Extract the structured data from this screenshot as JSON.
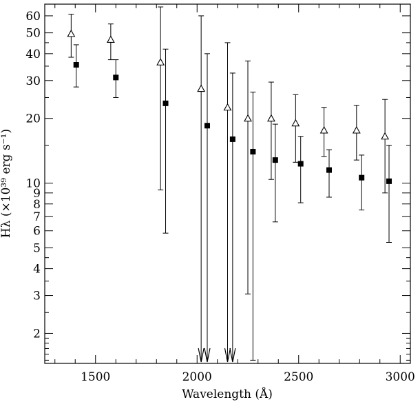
{
  "chart_data": {
    "type": "scatter",
    "xlabel": "Wavelength (Å)",
    "ylabel": "Hλ (×10³⁹ erg s⁻¹)",
    "xlim": [
      1250,
      3050
    ],
    "ylim": [
      1.45,
      68
    ],
    "y_scale": "log",
    "grid": false,
    "legend": "none",
    "x_ticks": [
      1500,
      2000,
      2500,
      3000
    ],
    "x_tick_labels": [
      "1500",
      "2000",
      "2500",
      "3000"
    ],
    "y_ticks": [
      2,
      3,
      4,
      5,
      6,
      7,
      8,
      9,
      10,
      20,
      30,
      40,
      50,
      60
    ],
    "y_tick_labels": [
      "2",
      "3",
      "4",
      "5",
      "6",
      "7",
      "8",
      "9",
      "10",
      "20",
      "30",
      "40",
      "50",
      "60"
    ],
    "series": [
      {
        "marker": "open-triangle",
        "points": [
          {
            "x": 1380,
            "y": 49.5,
            "ylo": 38.5,
            "yhi": 61
          },
          {
            "x": 1575,
            "y": 46.5,
            "ylo": 37.5,
            "yhi": 55
          },
          {
            "x": 1820,
            "y": 36.5,
            "ylo": 9.3,
            "yhi": 66
          },
          {
            "x": 2020,
            "y": 27.5,
            "ylo": null,
            "yhi": 60,
            "upper_limit": true
          },
          {
            "x": 2150,
            "y": 22.5,
            "ylo": null,
            "yhi": 45,
            "upper_limit": true
          },
          {
            "x": 2250,
            "y": 20,
            "ylo": 3.05,
            "yhi": 37
          },
          {
            "x": 2365,
            "y": 20,
            "ylo": 10.4,
            "yhi": 29.5
          },
          {
            "x": 2485,
            "y": 19,
            "ylo": 12.5,
            "yhi": 25.8
          },
          {
            "x": 2625,
            "y": 17.6,
            "ylo": 13.3,
            "yhi": 22.5
          },
          {
            "x": 2785,
            "y": 17.6,
            "ylo": 12.8,
            "yhi": 23
          },
          {
            "x": 2925,
            "y": 16.5,
            "ylo": 9,
            "yhi": 24.5
          }
        ]
      },
      {
        "marker": "filled-square",
        "points": [
          {
            "x": 1405,
            "y": 35.5,
            "ylo": 28,
            "yhi": 44
          },
          {
            "x": 1600,
            "y": 31,
            "ylo": 25,
            "yhi": 37.5
          },
          {
            "x": 1845,
            "y": 23.5,
            "ylo": 5.85,
            "yhi": 42
          },
          {
            "x": 2050,
            "y": 18.5,
            "ylo": null,
            "yhi": 40,
            "upper_limit": true
          },
          {
            "x": 2175,
            "y": 16,
            "ylo": null,
            "yhi": 32.5,
            "upper_limit": true
          },
          {
            "x": 2275,
            "y": 14,
            "ylo": 1.5,
            "yhi": 26.5
          },
          {
            "x": 2385,
            "y": 12.8,
            "ylo": 6.6,
            "yhi": 18.8
          },
          {
            "x": 2510,
            "y": 12.3,
            "ylo": 8.1,
            "yhi": 16.5
          },
          {
            "x": 2650,
            "y": 11.5,
            "ylo": 8.6,
            "yhi": 14.3
          },
          {
            "x": 2810,
            "y": 10.6,
            "ylo": 7.5,
            "yhi": 13.5
          },
          {
            "x": 2945,
            "y": 10.2,
            "ylo": 5.3,
            "yhi": 15
          }
        ]
      }
    ]
  }
}
